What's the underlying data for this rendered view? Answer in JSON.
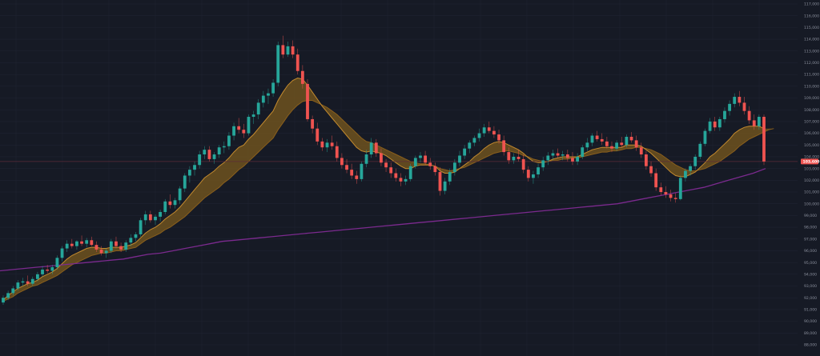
{
  "chart_data": {
    "type": "candlestick",
    "ylim": [
      88000,
      117000
    ],
    "grid": true,
    "y_ticks": [
      117000,
      116000,
      115000,
      114000,
      113000,
      112000,
      111000,
      110000,
      109000,
      108000,
      107000,
      106000,
      105000,
      104000,
      103000,
      102000,
      101000,
      100000,
      99000,
      98000,
      97000,
      96000,
      95000,
      94000,
      93000,
      92000,
      91000,
      90000,
      89000,
      88000
    ],
    "y_tick_labels": [
      "117,000",
      "116,000",
      "115,000",
      "114,000",
      "113,000",
      "112,000",
      "111,000",
      "110,000",
      "109,000",
      "108,000",
      "107,000",
      "106,000",
      "105,000",
      "104,000",
      "103,000",
      "102,000",
      "101,000",
      "100,000",
      "99,000",
      "98,000",
      "97,000",
      "96,000",
      "95,000",
      "94,000",
      "93,000",
      "92,000",
      "91,000",
      "90,000",
      "89,000",
      "88,000"
    ],
    "last_price": 103600,
    "last_price_label": "103,600",
    "candles": [
      [
        91.6,
        92.2,
        91.4,
        92.0
      ],
      [
        92.0,
        92.6,
        91.8,
        92.4
      ],
      [
        92.4,
        93.0,
        92.2,
        92.8
      ],
      [
        92.8,
        93.5,
        92.6,
        93.3
      ],
      [
        93.3,
        93.7,
        93.0,
        93.4
      ],
      [
        93.4,
        93.9,
        93.0,
        93.2
      ],
      [
        93.2,
        93.8,
        93.0,
        93.6
      ],
      [
        93.6,
        94.2,
        93.4,
        94.0
      ],
      [
        94.0,
        94.7,
        93.8,
        94.4
      ],
      [
        94.4,
        94.8,
        94.1,
        94.3
      ],
      [
        94.3,
        94.8,
        94.0,
        94.6
      ],
      [
        94.6,
        95.6,
        94.4,
        95.4
      ],
      [
        95.4,
        96.4,
        95.1,
        96.2
      ],
      [
        96.2,
        96.9,
        95.9,
        96.6
      ],
      [
        96.6,
        97.0,
        96.2,
        96.4
      ],
      [
        96.4,
        96.9,
        96.1,
        96.8
      ],
      [
        96.8,
        97.3,
        96.4,
        96.6
      ],
      [
        96.6,
        97.1,
        96.3,
        96.9
      ],
      [
        96.9,
        97.2,
        96.4,
        96.5
      ],
      [
        96.5,
        96.8,
        95.9,
        96.1
      ],
      [
        96.1,
        96.4,
        95.6,
        95.8
      ],
      [
        95.8,
        96.2,
        95.4,
        96.0
      ],
      [
        96.0,
        97.0,
        95.8,
        96.8
      ],
      [
        96.8,
        97.2,
        96.2,
        96.4
      ],
      [
        96.4,
        96.7,
        95.9,
        96.1
      ],
      [
        96.1,
        96.9,
        95.9,
        96.7
      ],
      [
        96.7,
        97.4,
        96.4,
        97.1
      ],
      [
        97.1,
        97.6,
        96.8,
        97.4
      ],
      [
        97.4,
        98.8,
        97.2,
        98.6
      ],
      [
        98.6,
        99.4,
        98.2,
        99.1
      ],
      [
        99.1,
        99.4,
        98.4,
        98.6
      ],
      [
        98.6,
        99.1,
        98.2,
        98.9
      ],
      [
        98.9,
        99.5,
        98.5,
        99.3
      ],
      [
        99.3,
        100.4,
        99.1,
        100.2
      ],
      [
        100.2,
        100.8,
        99.6,
        99.9
      ],
      [
        99.9,
        100.5,
        99.6,
        100.3
      ],
      [
        100.3,
        101.5,
        100.0,
        101.3
      ],
      [
        101.3,
        102.6,
        101.0,
        102.4
      ],
      [
        102.4,
        103.2,
        101.8,
        102.9
      ],
      [
        102.9,
        103.6,
        102.4,
        103.3
      ],
      [
        103.3,
        104.5,
        103.0,
        104.2
      ],
      [
        104.2,
        104.9,
        103.8,
        104.6
      ],
      [
        104.6,
        104.9,
        103.6,
        103.8
      ],
      [
        103.8,
        104.4,
        103.4,
        104.2
      ],
      [
        104.2,
        105.0,
        103.9,
        104.8
      ],
      [
        104.8,
        105.3,
        104.3,
        104.9
      ],
      [
        104.9,
        106.1,
        104.6,
        105.8
      ],
      [
        105.8,
        106.9,
        105.4,
        106.6
      ],
      [
        106.6,
        107.3,
        106.0,
        106.3
      ],
      [
        106.3,
        106.8,
        105.6,
        106.0
      ],
      [
        106.0,
        107.6,
        105.8,
        107.4
      ],
      [
        107.4,
        107.9,
        106.8,
        107.6
      ],
      [
        107.6,
        108.9,
        107.2,
        108.6
      ],
      [
        108.6,
        109.6,
        108.2,
        109.2
      ],
      [
        109.2,
        109.8,
        108.5,
        109.4
      ],
      [
        109.4,
        110.6,
        109.1,
        110.3
      ],
      [
        110.3,
        113.8,
        110.0,
        113.5
      ],
      [
        113.5,
        114.3,
        112.4,
        112.7
      ],
      [
        112.7,
        113.8,
        112.5,
        113.4
      ],
      [
        113.4,
        113.9,
        112.4,
        112.7
      ],
      [
        112.7,
        113.2,
        111.0,
        111.3
      ],
      [
        111.3,
        111.8,
        109.8,
        110.2
      ],
      [
        110.2,
        110.6,
        107.0,
        107.2
      ],
      [
        107.2,
        107.5,
        106.0,
        106.4
      ],
      [
        106.4,
        106.9,
        105.0,
        105.3
      ],
      [
        105.3,
        105.6,
        104.5,
        104.8
      ],
      [
        104.8,
        105.5,
        104.4,
        105.2
      ],
      [
        105.2,
        105.8,
        104.6,
        104.9
      ],
      [
        104.9,
        105.3,
        103.6,
        103.9
      ],
      [
        103.9,
        104.3,
        103.0,
        103.3
      ],
      [
        103.3,
        103.8,
        102.6,
        102.9
      ],
      [
        102.9,
        103.4,
        102.1,
        102.4
      ],
      [
        102.4,
        102.8,
        101.7,
        102.1
      ],
      [
        102.1,
        103.6,
        101.9,
        103.4
      ],
      [
        103.4,
        104.6,
        103.1,
        104.2
      ],
      [
        104.2,
        105.6,
        103.9,
        105.2
      ],
      [
        105.2,
        105.5,
        104.0,
        104.3
      ],
      [
        104.3,
        104.7,
        103.2,
        103.5
      ],
      [
        103.5,
        103.8,
        102.7,
        103.1
      ],
      [
        103.1,
        103.5,
        102.2,
        102.6
      ],
      [
        102.6,
        103.0,
        101.9,
        102.2
      ],
      [
        102.2,
        102.6,
        101.5,
        101.9
      ],
      [
        101.9,
        102.4,
        101.6,
        102.1
      ],
      [
        102.1,
        103.4,
        101.9,
        103.2
      ],
      [
        103.2,
        104.1,
        103.0,
        103.9
      ],
      [
        103.9,
        104.4,
        103.5,
        104.1
      ],
      [
        104.1,
        104.5,
        103.3,
        103.5
      ],
      [
        103.5,
        103.9,
        102.9,
        103.2
      ],
      [
        103.2,
        103.5,
        102.4,
        102.7
      ],
      [
        102.7,
        103.1,
        100.7,
        101.1
      ],
      [
        101.1,
        102.2,
        100.8,
        101.9
      ],
      [
        101.9,
        103.0,
        101.6,
        102.7
      ],
      [
        102.7,
        103.8,
        102.4,
        103.5
      ],
      [
        103.5,
        104.5,
        103.2,
        104.1
      ],
      [
        104.1,
        105.0,
        103.8,
        104.7
      ],
      [
        104.7,
        105.4,
        104.3,
        105.2
      ],
      [
        105.2,
        105.8,
        104.9,
        105.6
      ],
      [
        105.6,
        106.4,
        105.3,
        106.0
      ],
      [
        106.0,
        106.8,
        105.7,
        106.5
      ],
      [
        106.5,
        107.0,
        106.0,
        106.2
      ],
      [
        106.2,
        106.6,
        105.6,
        105.9
      ],
      [
        105.9,
        106.3,
        105.1,
        105.4
      ],
      [
        105.4,
        105.8,
        104.1,
        104.4
      ],
      [
        104.4,
        104.8,
        103.4,
        103.7
      ],
      [
        103.7,
        104.3,
        103.4,
        104.0
      ],
      [
        104.0,
        104.6,
        103.6,
        103.8
      ],
      [
        103.8,
        104.2,
        102.6,
        102.9
      ],
      [
        102.9,
        103.2,
        101.9,
        102.2
      ],
      [
        102.2,
        102.8,
        101.7,
        102.5
      ],
      [
        102.5,
        103.4,
        102.2,
        103.1
      ],
      [
        103.1,
        104.0,
        102.8,
        103.7
      ],
      [
        103.7,
        104.4,
        103.3,
        104.1
      ],
      [
        104.1,
        104.6,
        103.7,
        104.3
      ],
      [
        104.3,
        104.7,
        103.9,
        104.1
      ],
      [
        104.1,
        104.5,
        103.7,
        104.2
      ],
      [
        104.2,
        104.6,
        103.6,
        103.9
      ],
      [
        103.9,
        104.4,
        103.3,
        103.6
      ],
      [
        103.6,
        104.3,
        103.3,
        104.0
      ],
      [
        104.0,
        105.0,
        103.8,
        104.8
      ],
      [
        104.8,
        105.6,
        104.5,
        105.2
      ],
      [
        105.2,
        106.0,
        104.9,
        105.8
      ],
      [
        105.8,
        106.2,
        105.3,
        105.5
      ],
      [
        105.5,
        106.0,
        105.0,
        105.3
      ],
      [
        105.3,
        105.7,
        104.7,
        104.9
      ],
      [
        104.9,
        105.3,
        104.4,
        104.7
      ],
      [
        104.7,
        105.4,
        104.5,
        105.2
      ],
      [
        105.2,
        105.7,
        104.8,
        105.0
      ],
      [
        105.0,
        105.9,
        104.8,
        105.7
      ],
      [
        105.7,
        106.1,
        105.2,
        105.4
      ],
      [
        105.4,
        105.8,
        104.5,
        104.8
      ],
      [
        104.8,
        105.2,
        103.9,
        104.2
      ],
      [
        104.2,
        104.5,
        102.9,
        103.2
      ],
      [
        103.2,
        103.6,
        102.3,
        102.6
      ],
      [
        102.6,
        103.0,
        101.1,
        101.4
      ],
      [
        101.4,
        101.8,
        100.7,
        101.0
      ],
      [
        101.0,
        101.5,
        100.5,
        100.8
      ],
      [
        100.8,
        101.2,
        100.2,
        100.5
      ],
      [
        100.5,
        100.9,
        100.1,
        100.4
      ],
      [
        100.4,
        102.4,
        100.3,
        102.2
      ],
      [
        102.2,
        103.0,
        101.9,
        102.8
      ],
      [
        102.8,
        103.4,
        102.4,
        103.2
      ],
      [
        103.2,
        104.2,
        102.9,
        104.0
      ],
      [
        104.0,
        105.3,
        103.8,
        105.1
      ],
      [
        105.1,
        106.4,
        104.9,
        106.2
      ],
      [
        106.2,
        107.3,
        106.0,
        107.0
      ],
      [
        107.0,
        107.4,
        106.2,
        106.5
      ],
      [
        106.5,
        107.4,
        106.2,
        107.2
      ],
      [
        107.2,
        108.2,
        106.9,
        107.9
      ],
      [
        107.9,
        108.8,
        107.5,
        108.5
      ],
      [
        108.5,
        109.4,
        108.2,
        109.1
      ],
      [
        109.1,
        109.6,
        108.3,
        108.6
      ],
      [
        108.6,
        109.1,
        107.6,
        107.9
      ],
      [
        107.9,
        108.3,
        106.8,
        107.1
      ],
      [
        107.1,
        107.6,
        106.3,
        106.6
      ],
      [
        106.6,
        107.6,
        106.3,
        107.4
      ],
      [
        107.4,
        107.6,
        103.3,
        103.6
      ]
    ],
    "ema_fast": [
      91.8,
      92.2,
      92.5,
      92.8,
      93.0,
      93.2,
      93.3,
      93.5,
      93.8,
      94.0,
      94.2,
      94.5,
      94.9,
      95.3,
      95.6,
      95.8,
      96.0,
      96.2,
      96.3,
      96.3,
      96.2,
      96.2,
      96.3,
      96.3,
      96.3,
      96.4,
      96.5,
      96.7,
      97.1,
      97.5,
      97.8,
      98.0,
      98.3,
      98.7,
      99.0,
      99.3,
      99.7,
      100.2,
      100.7,
      101.2,
      101.7,
      102.2,
      102.5,
      102.8,
      103.2,
      103.5,
      103.9,
      104.4,
      104.8,
      105.0,
      105.5,
      105.9,
      106.4,
      106.9,
      107.4,
      107.9,
      108.8,
      109.5,
      110.1,
      110.5,
      110.7,
      110.6,
      110.1,
      109.5,
      108.9,
      108.3,
      107.8,
      107.3,
      106.8,
      106.3,
      105.8,
      105.3,
      104.8,
      104.5,
      104.4,
      104.5,
      104.4,
      104.3,
      104.1,
      103.8,
      103.5,
      103.2,
      103.0,
      103.0,
      103.2,
      103.3,
      103.3,
      103.3,
      103.2,
      102.8,
      102.6,
      102.6,
      102.7,
      103.0,
      103.3,
      103.6,
      104.0,
      104.3,
      104.7,
      105.0,
      105.2,
      105.3,
      105.2,
      105.0,
      104.8,
      104.6,
      104.3,
      103.9,
      103.6,
      103.5,
      103.5,
      103.6,
      103.8,
      103.9,
      104.0,
      104.0,
      104.0,
      104.0,
      104.2,
      104.4,
      104.6,
      104.7,
      104.8,
      104.8,
      104.8,
      104.8,
      104.8,
      105.0,
      105.0,
      105.0,
      104.9,
      104.6,
      104.3,
      103.9,
      103.5,
      103.1,
      102.7,
      102.4,
      102.3,
      102.3,
      102.5,
      102.7,
      103.1,
      103.5,
      104.0,
      104.3,
      104.7,
      105.1,
      105.5,
      106.0,
      106.3,
      106.5,
      106.6,
      106.6,
      106.6,
      106.4
    ],
    "ema_slow": [
      91.7,
      91.9,
      92.1,
      92.4,
      92.6,
      92.8,
      93.0,
      93.1,
      93.3,
      93.5,
      93.7,
      93.9,
      94.2,
      94.5,
      94.8,
      95.0,
      95.2,
      95.4,
      95.6,
      95.7,
      95.8,
      95.8,
      95.9,
      96.0,
      96.0,
      96.1,
      96.2,
      96.3,
      96.6,
      96.9,
      97.1,
      97.3,
      97.5,
      97.8,
      98.0,
      98.3,
      98.6,
      98.9,
      99.3,
      99.7,
      100.1,
      100.5,
      100.8,
      101.1,
      101.4,
      101.8,
      102.1,
      102.5,
      102.9,
      103.2,
      103.6,
      104.0,
      104.4,
      104.8,
      105.2,
      105.6,
      106.3,
      106.9,
      107.5,
      108.0,
      108.4,
      108.7,
      108.8,
      108.8,
      108.6,
      108.4,
      108.2,
      107.9,
      107.6,
      107.2,
      106.8,
      106.4,
      106.0,
      105.6,
      105.3,
      105.2,
      105.0,
      104.8,
      104.6,
      104.4,
      104.2,
      104.0,
      103.8,
      103.6,
      103.5,
      103.4,
      103.4,
      103.3,
      103.2,
      103.0,
      102.9,
      102.8,
      102.9,
      103.0,
      103.1,
      103.3,
      103.5,
      103.7,
      103.9,
      104.1,
      104.3,
      104.4,
      104.5,
      104.5,
      104.4,
      104.3,
      104.1,
      104.0,
      103.8,
      103.7,
      103.6,
      103.6,
      103.7,
      103.7,
      103.8,
      103.8,
      103.9,
      103.9,
      104.0,
      104.1,
      104.2,
      104.3,
      104.4,
      104.4,
      104.5,
      104.5,
      104.6,
      104.7,
      104.7,
      104.8,
      104.8,
      104.7,
      104.6,
      104.4,
      104.2,
      103.9,
      103.6,
      103.3,
      103.1,
      102.9,
      102.8,
      102.8,
      102.9,
      103.0,
      103.2,
      103.4,
      103.6,
      103.9,
      104.2,
      104.5,
      104.9,
      105.2,
      105.5,
      105.7,
      105.9,
      106.1,
      106.3,
      106.4
    ],
    "ma_long": [
      94.3,
      94.4,
      94.5,
      94.6,
      94.7,
      94.8,
      94.9,
      95.0,
      95.1,
      95.2,
      95.3,
      95.5,
      95.7,
      95.8,
      96.0,
      96.2,
      96.4,
      96.6,
      96.8,
      96.9,
      97.0,
      97.1,
      97.2,
      97.3,
      97.4,
      97.5,
      97.6,
      97.7,
      97.8,
      97.9,
      98.0,
      98.1,
      98.2,
      98.3,
      98.4,
      98.5,
      98.6,
      98.7,
      98.8,
      98.9,
      99.0,
      99.1,
      99.2,
      99.3,
      99.4,
      99.5,
      99.6,
      99.7,
      99.8,
      99.9,
      100.0,
      100.2,
      100.4,
      100.6,
      100.8,
      101.0,
      101.2,
      101.4,
      101.7,
      102.0,
      102.3,
      102.6,
      103.0
    ],
    "colors": {
      "up": "#26a69a",
      "down": "#ef5350",
      "ema_fast": "#c38a2e",
      "ema_slow": "#8a5f1c",
      "ribbon": "#7a5a1e",
      "ma_long": "#7b2a8e",
      "price_line": "#5b2a38",
      "badge": "#ef5350",
      "grid": "#1f2331",
      "background": "#161a25"
    }
  }
}
